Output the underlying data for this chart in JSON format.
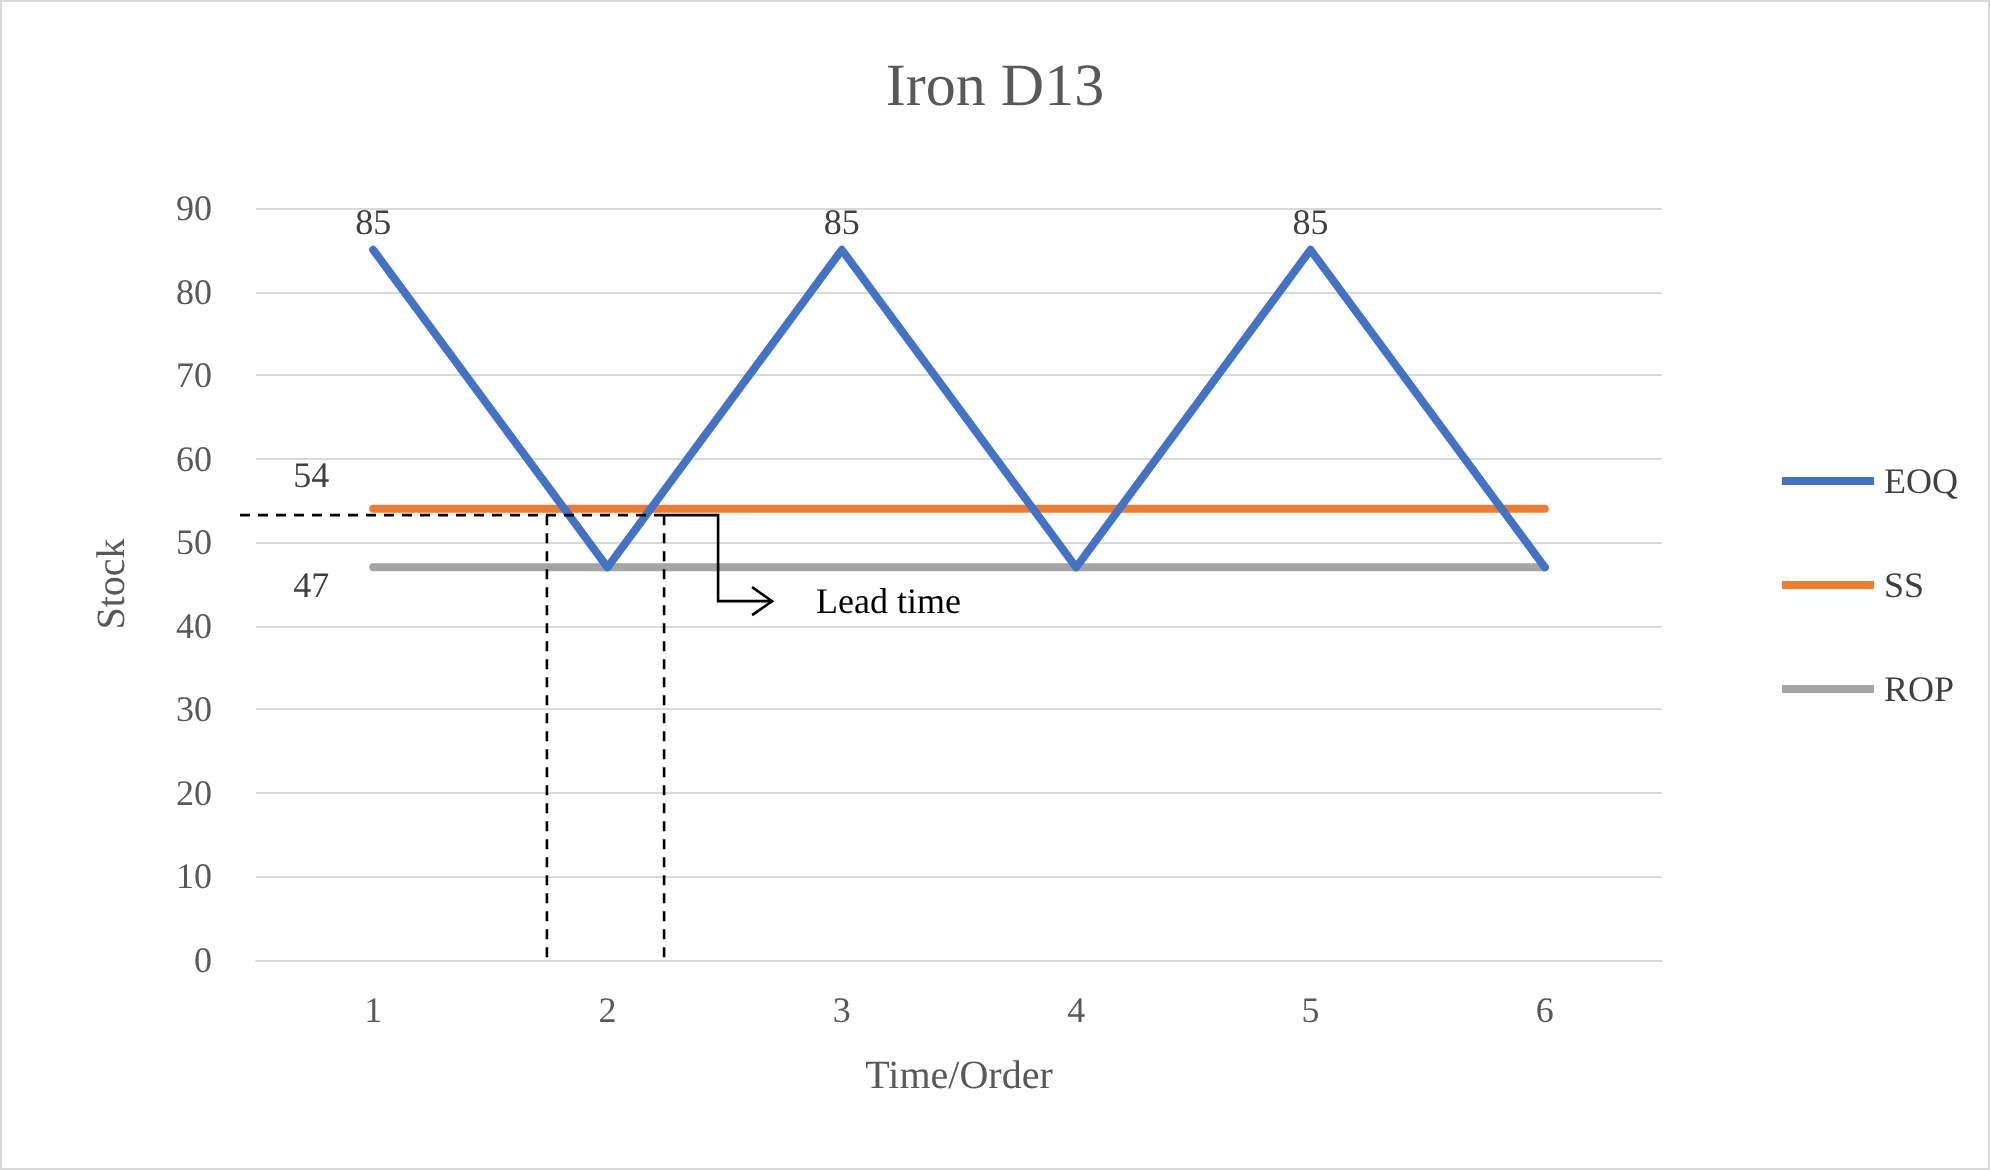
{
  "chart_data": {
    "type": "line",
    "title": "Iron D13",
    "xlabel": "Time/Order",
    "ylabel": "Stock",
    "categories": [
      "1",
      "2",
      "3",
      "4",
      "5",
      "6"
    ],
    "series": [
      {
        "name": "EOQ",
        "color": "#4472c4",
        "values": [
          85,
          47,
          85,
          47,
          85,
          47
        ],
        "value_labels": [
          "85",
          null,
          "85",
          null,
          "85",
          null
        ]
      },
      {
        "name": "SS",
        "color": "#ed7d31",
        "values": [
          54,
          54,
          54,
          54,
          54,
          54
        ],
        "value_labels": [
          "54",
          null,
          null,
          null,
          null,
          null
        ]
      },
      {
        "name": "ROP",
        "color": "#a5a5a5",
        "values": [
          47,
          47,
          47,
          47,
          47,
          47
        ],
        "value_labels": [
          "47",
          null,
          null,
          null,
          null,
          null
        ]
      }
    ],
    "ylim": [
      0,
      90
    ],
    "yticks": [
      0,
      10,
      20,
      30,
      40,
      50,
      60,
      70,
      80,
      90
    ],
    "grid": "y",
    "legend": "right",
    "marker": "none",
    "line_style": "solid",
    "annotations": [
      {
        "text": "Lead time",
        "y": 53
      }
    ]
  }
}
